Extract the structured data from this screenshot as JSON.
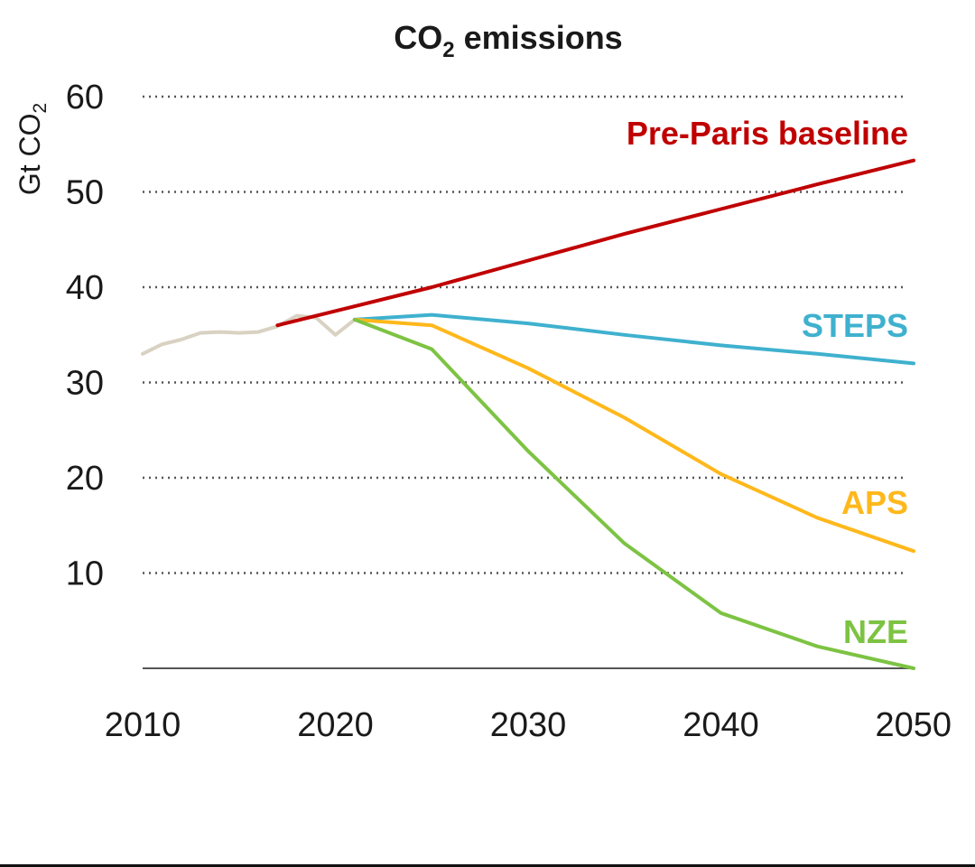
{
  "chart_data": {
    "type": "line",
    "title": "CO",
    "title_subscript": "2",
    "title_suffix": " emissions",
    "ylabel": "Gt CO",
    "ylabel_subscript": "2",
    "xlabel": "",
    "xlim": [
      2010,
      2050
    ],
    "ylim": [
      0,
      60
    ],
    "x_ticks": [
      2010,
      2020,
      2030,
      2040,
      2050
    ],
    "y_ticks": [
      10,
      20,
      30,
      40,
      50,
      60
    ],
    "grid": true,
    "legend": "inline labels at right end of lines",
    "series": [
      {
        "key": "historical",
        "name": "",
        "color": "#d9d2c2",
        "x": [
          2010,
          2011,
          2012,
          2013,
          2014,
          2015,
          2016,
          2017,
          2018,
          2019,
          2020,
          2021
        ],
        "y": [
          33.0,
          34.0,
          34.5,
          35.2,
          35.3,
          35.2,
          35.3,
          35.9,
          37.0,
          36.8,
          35.0,
          36.6
        ]
      },
      {
        "key": "pre_paris",
        "name": "Pre-Paris baseline",
        "color": "#c00000",
        "x": [
          2017,
          2025,
          2030,
          2035,
          2040,
          2045,
          2050
        ],
        "y": [
          36.0,
          40.0,
          42.8,
          45.6,
          48.2,
          50.8,
          53.3
        ]
      },
      {
        "key": "steps",
        "name": "STEPS",
        "color": "#3fb1ce",
        "x": [
          2021,
          2025,
          2030,
          2035,
          2040,
          2045,
          2050
        ],
        "y": [
          36.6,
          37.1,
          36.2,
          35.0,
          33.9,
          33.0,
          32.0
        ]
      },
      {
        "key": "aps",
        "name": "APS",
        "color": "#ffb81c",
        "x": [
          2021,
          2025,
          2030,
          2035,
          2040,
          2045,
          2050
        ],
        "y": [
          36.6,
          36.0,
          31.5,
          26.3,
          20.4,
          15.8,
          12.3
        ]
      },
      {
        "key": "nze",
        "name": "NZE",
        "color": "#7dc343",
        "x": [
          2021,
          2025,
          2030,
          2035,
          2040,
          2045,
          2050
        ],
        "y": [
          36.6,
          33.5,
          22.8,
          13.1,
          5.8,
          2.3,
          0.0
        ]
      }
    ]
  }
}
